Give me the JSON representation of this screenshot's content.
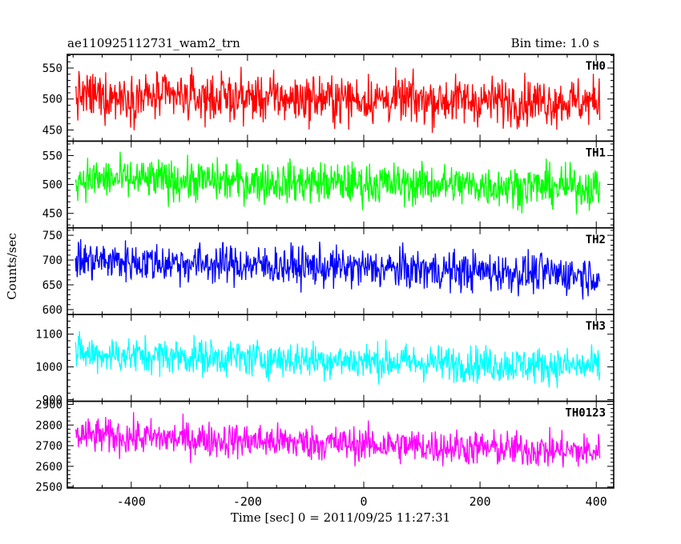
{
  "header": {
    "title_left": "ae110925112731_wam2_trn",
    "title_right": "Bin time: 1.0 s"
  },
  "chart_data": {
    "type": "line",
    "xlabel": "Time [sec] 0 = 2011/09/25 11:27:31",
    "ylabel": "Counts/sec",
    "xlim": [
      -510,
      430
    ],
    "xticks": [
      -400,
      -200,
      0,
      200,
      400
    ],
    "x_range": [
      -496,
      406
    ],
    "bin_time_s": 1.0,
    "panels": [
      {
        "name": "TH0",
        "color": "#ff0000",
        "ylim": [
          432,
          572
        ],
        "yticks": [
          450,
          500,
          550
        ],
        "mean_start": 505,
        "mean_end": 495,
        "noise_amplitude": 38
      },
      {
        "name": "TH1",
        "color": "#00ff00",
        "ylim": [
          425,
          575
        ],
        "yticks": [
          450,
          500,
          550
        ],
        "mean_start": 510,
        "mean_end": 495,
        "noise_amplitude": 35
      },
      {
        "name": "TH2",
        "color": "#0000ff",
        "ylim": [
          590,
          765
        ],
        "yticks": [
          600,
          650,
          700,
          750
        ],
        "mean_start": 700,
        "mean_end": 670,
        "noise_amplitude": 40
      },
      {
        "name": "TH3",
        "color": "#00ffff",
        "ylim": [
          895,
          1160
        ],
        "yticks": [
          900,
          1000,
          1100
        ],
        "mean_start": 1040,
        "mean_end": 1000,
        "noise_amplitude": 55
      },
      {
        "name": "TH0123",
        "color": "#ff00ff",
        "ylim": [
          2495,
          2915
        ],
        "yticks": [
          2500,
          2600,
          2700,
          2800,
          2900
        ],
        "mean_start": 2750,
        "mean_end": 2670,
        "noise_amplitude": 85
      }
    ]
  }
}
